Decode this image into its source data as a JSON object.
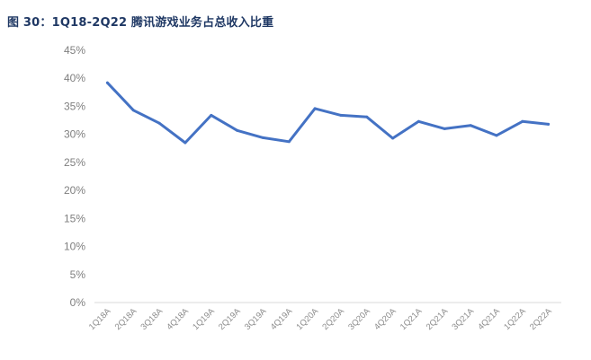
{
  "figure": {
    "title": "图 30：1Q18-2Q22 腾讯游戏业务占总收入比重"
  },
  "chart_data": {
    "type": "line",
    "title": "图 30：1Q18-2Q22 腾讯游戏业务占总收入比重",
    "xlabel": "",
    "ylabel": "",
    "categories": [
      "1Q18A",
      "2Q18A",
      "3Q18A",
      "4Q18A",
      "1Q19A",
      "2Q19A",
      "3Q19A",
      "4Q19A",
      "1Q20A",
      "2Q20A",
      "3Q20A",
      "4Q20A",
      "1Q21A",
      "2Q21A",
      "3Q21A",
      "4Q21A",
      "1Q22A",
      "2Q22A"
    ],
    "series": [
      {
        "values": [
          39.2,
          34.3,
          32.0,
          28.5,
          33.4,
          30.7,
          29.4,
          28.7,
          34.6,
          33.4,
          33.1,
          29.3,
          32.3,
          31.0,
          31.6,
          29.8,
          32.3,
          31.8
        ],
        "color": "#4472c4"
      }
    ],
    "ylim": [
      0,
      45
    ],
    "yticks": [
      "0%",
      "5%",
      "10%",
      "15%",
      "20%",
      "25%",
      "30%",
      "35%",
      "40%",
      "45%"
    ],
    "grid": false,
    "legend": "none"
  }
}
